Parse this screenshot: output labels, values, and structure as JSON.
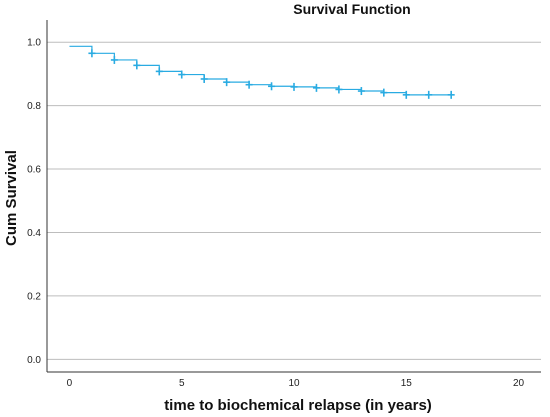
{
  "chart_data": {
    "type": "line",
    "title": "Survival Function",
    "xlabel": "time to biochemical relapse (in years)",
    "ylabel": "Cum Survival",
    "xlim": [
      -1,
      21
    ],
    "ylim": [
      -0.04,
      1.07
    ],
    "x_ticks": [
      "0",
      "5",
      "10",
      "15",
      "20"
    ],
    "y_ticks": [
      "0.0",
      "0.2",
      "0.4",
      "0.6",
      "0.8",
      "1.0"
    ],
    "grid": "horizontal",
    "step": true,
    "series": [
      {
        "color": "#29abe2",
        "x": [
          0,
          1,
          2,
          3,
          4,
          5,
          6,
          7,
          8,
          9,
          10,
          11,
          12,
          13,
          14,
          15,
          16,
          17
        ],
        "values": [
          0.987,
          0.965,
          0.944,
          0.927,
          0.908,
          0.898,
          0.884,
          0.874,
          0.866,
          0.861,
          0.859,
          0.856,
          0.851,
          0.846,
          0.841,
          0.834,
          0.834,
          0.834
        ]
      }
    ],
    "censored": {
      "x": [
        1,
        2,
        3,
        4,
        5,
        6,
        7,
        8,
        9,
        10,
        11,
        12,
        13,
        14,
        15,
        16,
        17
      ],
      "values": [
        0.965,
        0.944,
        0.927,
        0.908,
        0.898,
        0.884,
        0.874,
        0.866,
        0.861,
        0.859,
        0.856,
        0.851,
        0.846,
        0.841,
        0.834,
        0.834,
        0.834
      ]
    },
    "colors": {
      "series": "#29abe2",
      "grid": "#bdbdbd",
      "axis": "#333333"
    }
  }
}
